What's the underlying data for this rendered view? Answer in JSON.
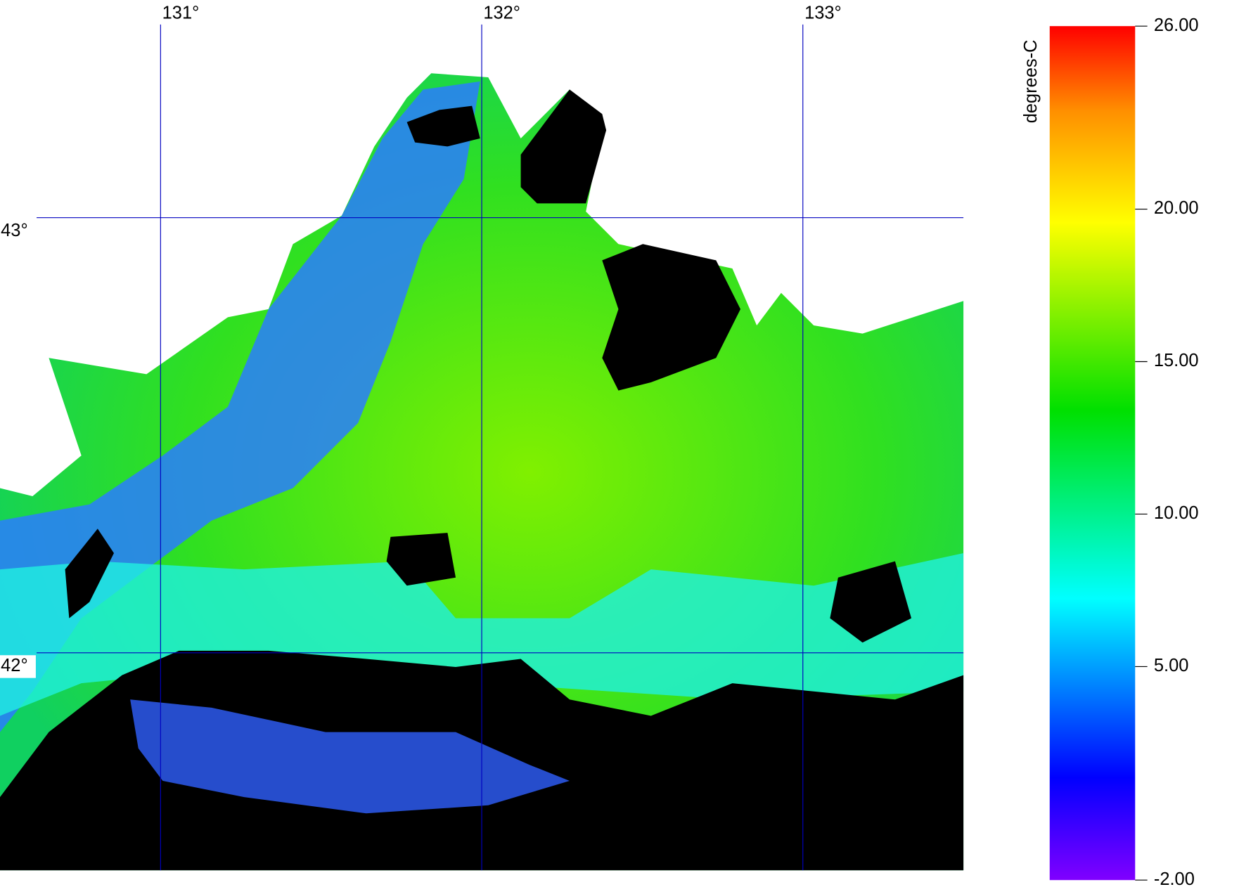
{
  "map": {
    "lon_ticks": [
      {
        "value": 131,
        "label": "131°"
      },
      {
        "value": 132,
        "label": "132°"
      },
      {
        "value": 133,
        "label": "133°"
      }
    ],
    "lat_ticks": [
      {
        "value": 43,
        "label": "43°"
      },
      {
        "value": 42,
        "label": "42°"
      }
    ],
    "xlim": [
      130.5,
      133.5
    ],
    "ylim": [
      41.5,
      43.5
    ]
  },
  "colorbar": {
    "label": "degrees-C",
    "range": [
      -2,
      26
    ],
    "ticks": [
      {
        "value": 26,
        "label": "26.00"
      },
      {
        "value": 20,
        "label": "20.00"
      },
      {
        "value": 15,
        "label": "15.00"
      },
      {
        "value": 10,
        "label": "10.00"
      },
      {
        "value": 5,
        "label": "5.00"
      },
      {
        "value": -2,
        "label": "-2.00"
      }
    ]
  }
}
